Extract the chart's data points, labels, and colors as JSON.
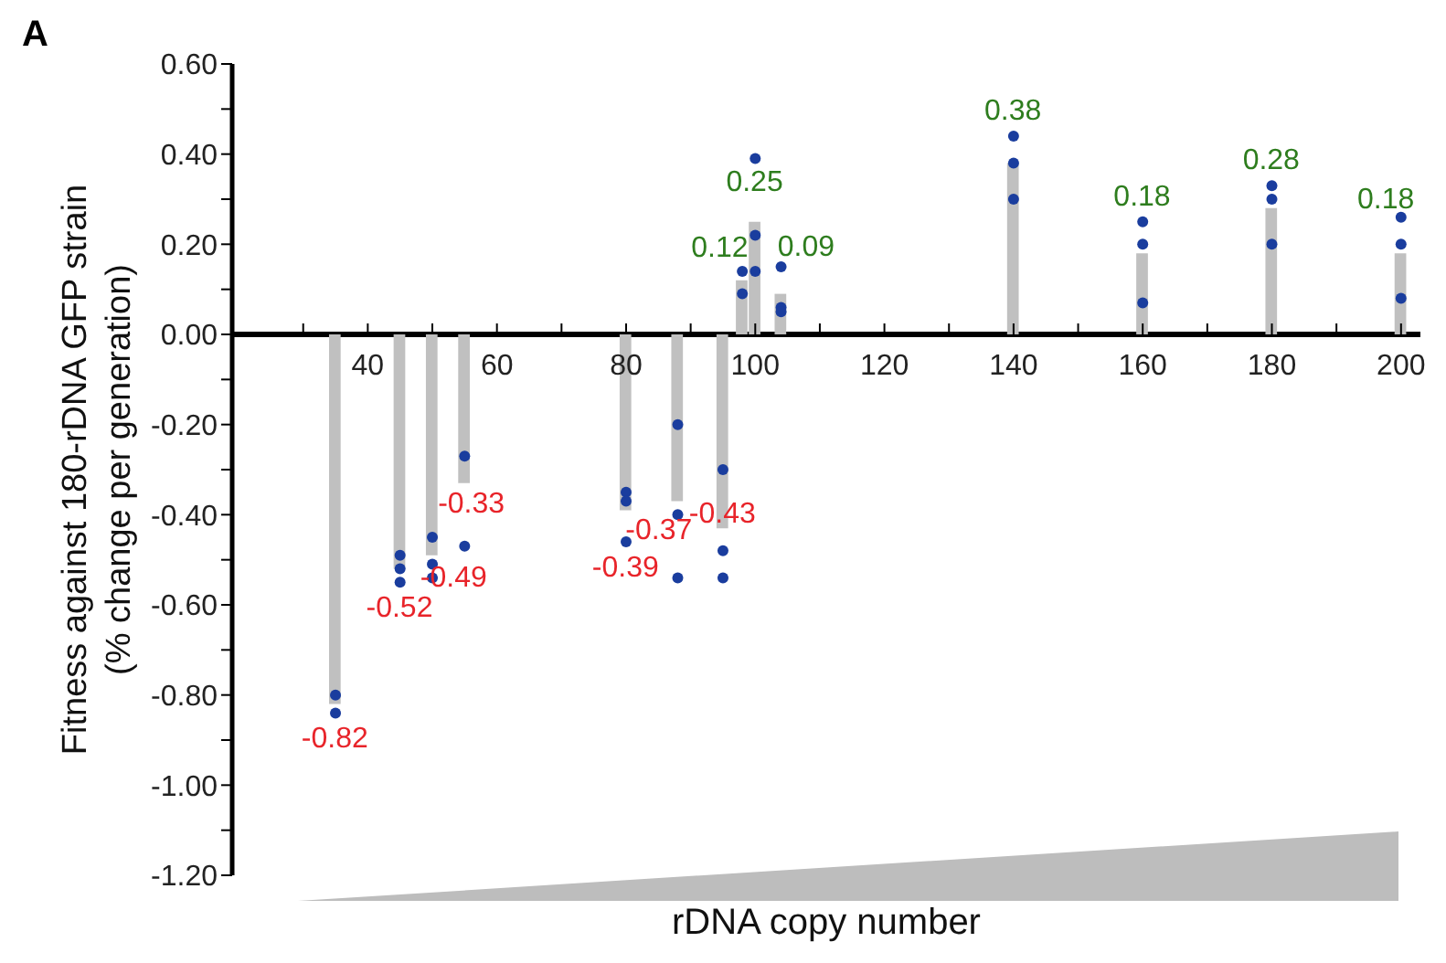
{
  "chart_data": {
    "type": "bar",
    "title": "A",
    "xlabel": "rDNA copy number",
    "ylabel": "Fitness against 180-rDNA GFP strain\n(% change per generation)",
    "xlim": [
      19,
      203
    ],
    "xticks": [
      {
        "value": 30,
        "label": null
      },
      40,
      {
        "value": 50,
        "label": null
      },
      60,
      {
        "value": 70,
        "label": null
      },
      80,
      {
        "value": 90,
        "label": null
      },
      100,
      {
        "value": 110,
        "label": null
      },
      120,
      {
        "value": 130,
        "label": null
      },
      140,
      {
        "value": 150,
        "label": null
      },
      160,
      {
        "value": 170,
        "label": null
      },
      180,
      {
        "value": 190,
        "label": null
      },
      200
    ],
    "ylim": [
      -1.2,
      0.6
    ],
    "yticks": [
      {
        "value": -1.2,
        "label": "-1.20"
      },
      {
        "value": -1.1,
        "label": null
      },
      {
        "value": -1.0,
        "label": "-1.00"
      },
      {
        "value": -0.9,
        "label": null
      },
      {
        "value": -0.8,
        "label": "-0.80"
      },
      {
        "value": -0.7,
        "label": null
      },
      {
        "value": -0.6,
        "label": "-0.60"
      },
      {
        "value": -0.5,
        "label": null
      },
      {
        "value": -0.4,
        "label": "-0.40"
      },
      {
        "value": -0.3,
        "label": null
      },
      {
        "value": -0.2,
        "label": "-0.20"
      },
      {
        "value": -0.1,
        "label": null
      },
      {
        "value": 0,
        "label": "0.00"
      },
      {
        "value": 0.1,
        "label": null
      },
      {
        "value": 0.2,
        "label": "0.20"
      },
      {
        "value": 0.3,
        "label": null
      },
      {
        "value": 0.4,
        "label": "0.40"
      },
      {
        "value": 0.5,
        "label": null
      },
      {
        "value": 0.6,
        "label": "0.60"
      }
    ],
    "grid": false,
    "legend": false,
    "series": [
      {
        "color": "#c0c0c0",
        "data_labels": true,
        "x": [
          35,
          45,
          50,
          55,
          80,
          88,
          95,
          98,
          100,
          104,
          140,
          160,
          180,
          200
        ],
        "values": [
          -0.82,
          -0.52,
          -0.49,
          -0.33,
          -0.39,
          -0.37,
          -0.43,
          0.12,
          0.25,
          0.09,
          0.38,
          0.18,
          0.28,
          0.18
        ]
      },
      {
        "type": "scatter",
        "color": "#1a3d9e",
        "marker": "circle",
        "x": [
          35,
          35,
          45,
          45,
          45,
          50,
          50,
          50,
          55,
          55,
          80,
          80,
          80,
          88,
          88,
          88,
          95,
          95,
          95,
          98,
          98,
          100,
          100,
          100,
          104,
          104,
          104,
          140,
          140,
          140,
          160,
          160,
          160,
          180,
          180,
          180,
          200,
          200,
          200
        ],
        "values": [
          -0.8,
          -0.84,
          -0.49,
          -0.52,
          -0.55,
          -0.45,
          -0.51,
          -0.54,
          -0.27,
          -0.47,
          -0.35,
          -0.37,
          -0.46,
          -0.2,
          -0.4,
          -0.54,
          -0.3,
          -0.48,
          -0.54,
          0.14,
          0.09,
          0.39,
          0.22,
          0.14,
          0.15,
          0.06,
          0.05,
          0.44,
          0.38,
          0.3,
          0.25,
          0.2,
          0.07,
          0.33,
          0.3,
          0.2,
          0.26,
          0.2,
          0.08
        ]
      }
    ]
  }
}
